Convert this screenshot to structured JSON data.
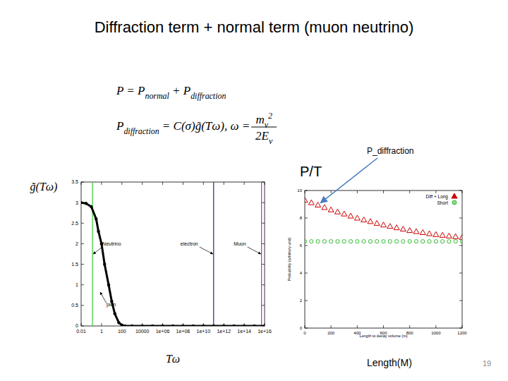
{
  "title": "Diffraction term + normal  term (muon neutrino)",
  "formulas": [
    {
      "segments": [
        {
          "text": "P = P"
        },
        {
          "sub": "normal"
        },
        {
          "text": " + P"
        },
        {
          "sub": "diffraction"
        }
      ]
    },
    {
      "segments": [
        {
          "text": "P"
        },
        {
          "sub": "diffraction"
        },
        {
          "text": " = C(σ)g̃(Tω), ω = "
        }
      ],
      "fraction": {
        "numerator": [
          {
            "text": "m"
          },
          {
            "sub": "ν"
          },
          {
            "sup": "2"
          }
        ],
        "denominator": [
          {
            "text": "2E"
          },
          {
            "sub": "ν"
          }
        ]
      }
    }
  ],
  "annotations": [
    {
      "text": "P_diffraction"
    },
    {
      "text": "P/T"
    },
    {
      "text": "Length(M)"
    }
  ],
  "page_number": 19,
  "chart_data": [
    {
      "type": "line",
      "xlabel": "Tω",
      "ylabel": "g̃(Tω)",
      "log": "x",
      "xlim": [
        0.01,
        1e+16
      ],
      "ylim": [
        0,
        3.5
      ],
      "xticks": [
        0.01,
        1,
        100,
        10000,
        {
          "value": 1000000.0,
          "label": "1e+06"
        },
        {
          "value": 100000000.0,
          "label": "1e+08"
        },
        {
          "value": 10000000000.0,
          "label": "1e+10"
        },
        {
          "value": 1000000000000.0,
          "label": "1e+12"
        },
        {
          "value": 100000000000000.0,
          "label": "1e+14"
        },
        {
          "value": 1e+16,
          "label": "1e+16"
        }
      ],
      "yticks": [
        0,
        0.5,
        1,
        1.5,
        2,
        2.5,
        3,
        3.5
      ],
      "x": [
        0.01,
        0.03,
        0.1,
        0.3,
        0.5,
        1,
        2,
        5,
        10,
        20,
        50,
        100,
        200,
        1000,
        10000,
        100000,
        1000000.0,
        10000000.0,
        100000000.0,
        1000000000.0,
        10000000000.0,
        100000000000.0,
        1000000000000.0,
        10000000000000.0,
        100000000000000.0,
        1000000000000000.0,
        1e+16
      ],
      "series": [
        {
          "color": "#000000",
          "marker": "circle",
          "line_style": "solid",
          "values": [
            3.0,
            2.98,
            2.9,
            2.6,
            2.3,
            2.0,
            1.5,
            1.0,
            0.6,
            0.3,
            0.08,
            0.02,
            0,
            0,
            0,
            0,
            0,
            0,
            0,
            0,
            0,
            0,
            0,
            0,
            0,
            0,
            0
          ]
        }
      ],
      "reference_lines": [
        {
          "x": 0.13,
          "label": "Neutrino",
          "color": "#33cc33"
        },
        {
          "x": 100000000000.0,
          "label": "electron",
          "color": "#2222aa"
        },
        {
          "x": 5000000000000000.0,
          "label": "Muon",
          "color": "#cc22cc"
        }
      ],
      "curve_labels": [
        {
          "text": "pion"
        }
      ]
    },
    {
      "type": "scatter",
      "xlabel": "Length to decay volume (m)",
      "ylabel": "Probability (arbitrary unit)",
      "xlim": [
        0,
        1200
      ],
      "ylim": [
        0,
        10
      ],
      "xticks": [
        0,
        200,
        400,
        600,
        800,
        1000,
        1200
      ],
      "yticks": [
        0,
        2,
        4,
        6,
        8,
        10
      ],
      "legend": "upper right",
      "x": [
        0,
        50,
        100,
        150,
        200,
        250,
        300,
        350,
        400,
        450,
        500,
        550,
        600,
        650,
        700,
        750,
        800,
        850,
        900,
        950,
        1000,
        1050,
        1100,
        1150,
        1200
      ],
      "series": [
        {
          "name": "Diff + Long",
          "color": "#cc0000",
          "marker": "triangle",
          "values": [
            9.3,
            9.12,
            8.95,
            8.77,
            8.6,
            8.45,
            8.3,
            8.15,
            8.0,
            7.87,
            7.75,
            7.62,
            7.5,
            7.4,
            7.3,
            7.2,
            7.1,
            7.02,
            6.95,
            6.87,
            6.8,
            6.75,
            6.7,
            6.65,
            6.6
          ]
        },
        {
          "name": "Short",
          "color": "#33bb33",
          "marker": "circle",
          "values": [
            6.3,
            6.3,
            6.3,
            6.3,
            6.3,
            6.3,
            6.3,
            6.3,
            6.3,
            6.3,
            6.3,
            6.3,
            6.3,
            6.3,
            6.3,
            6.3,
            6.3,
            6.3,
            6.3,
            6.3,
            6.3,
            6.3,
            6.3,
            6.3,
            6.3
          ]
        }
      ]
    }
  ]
}
